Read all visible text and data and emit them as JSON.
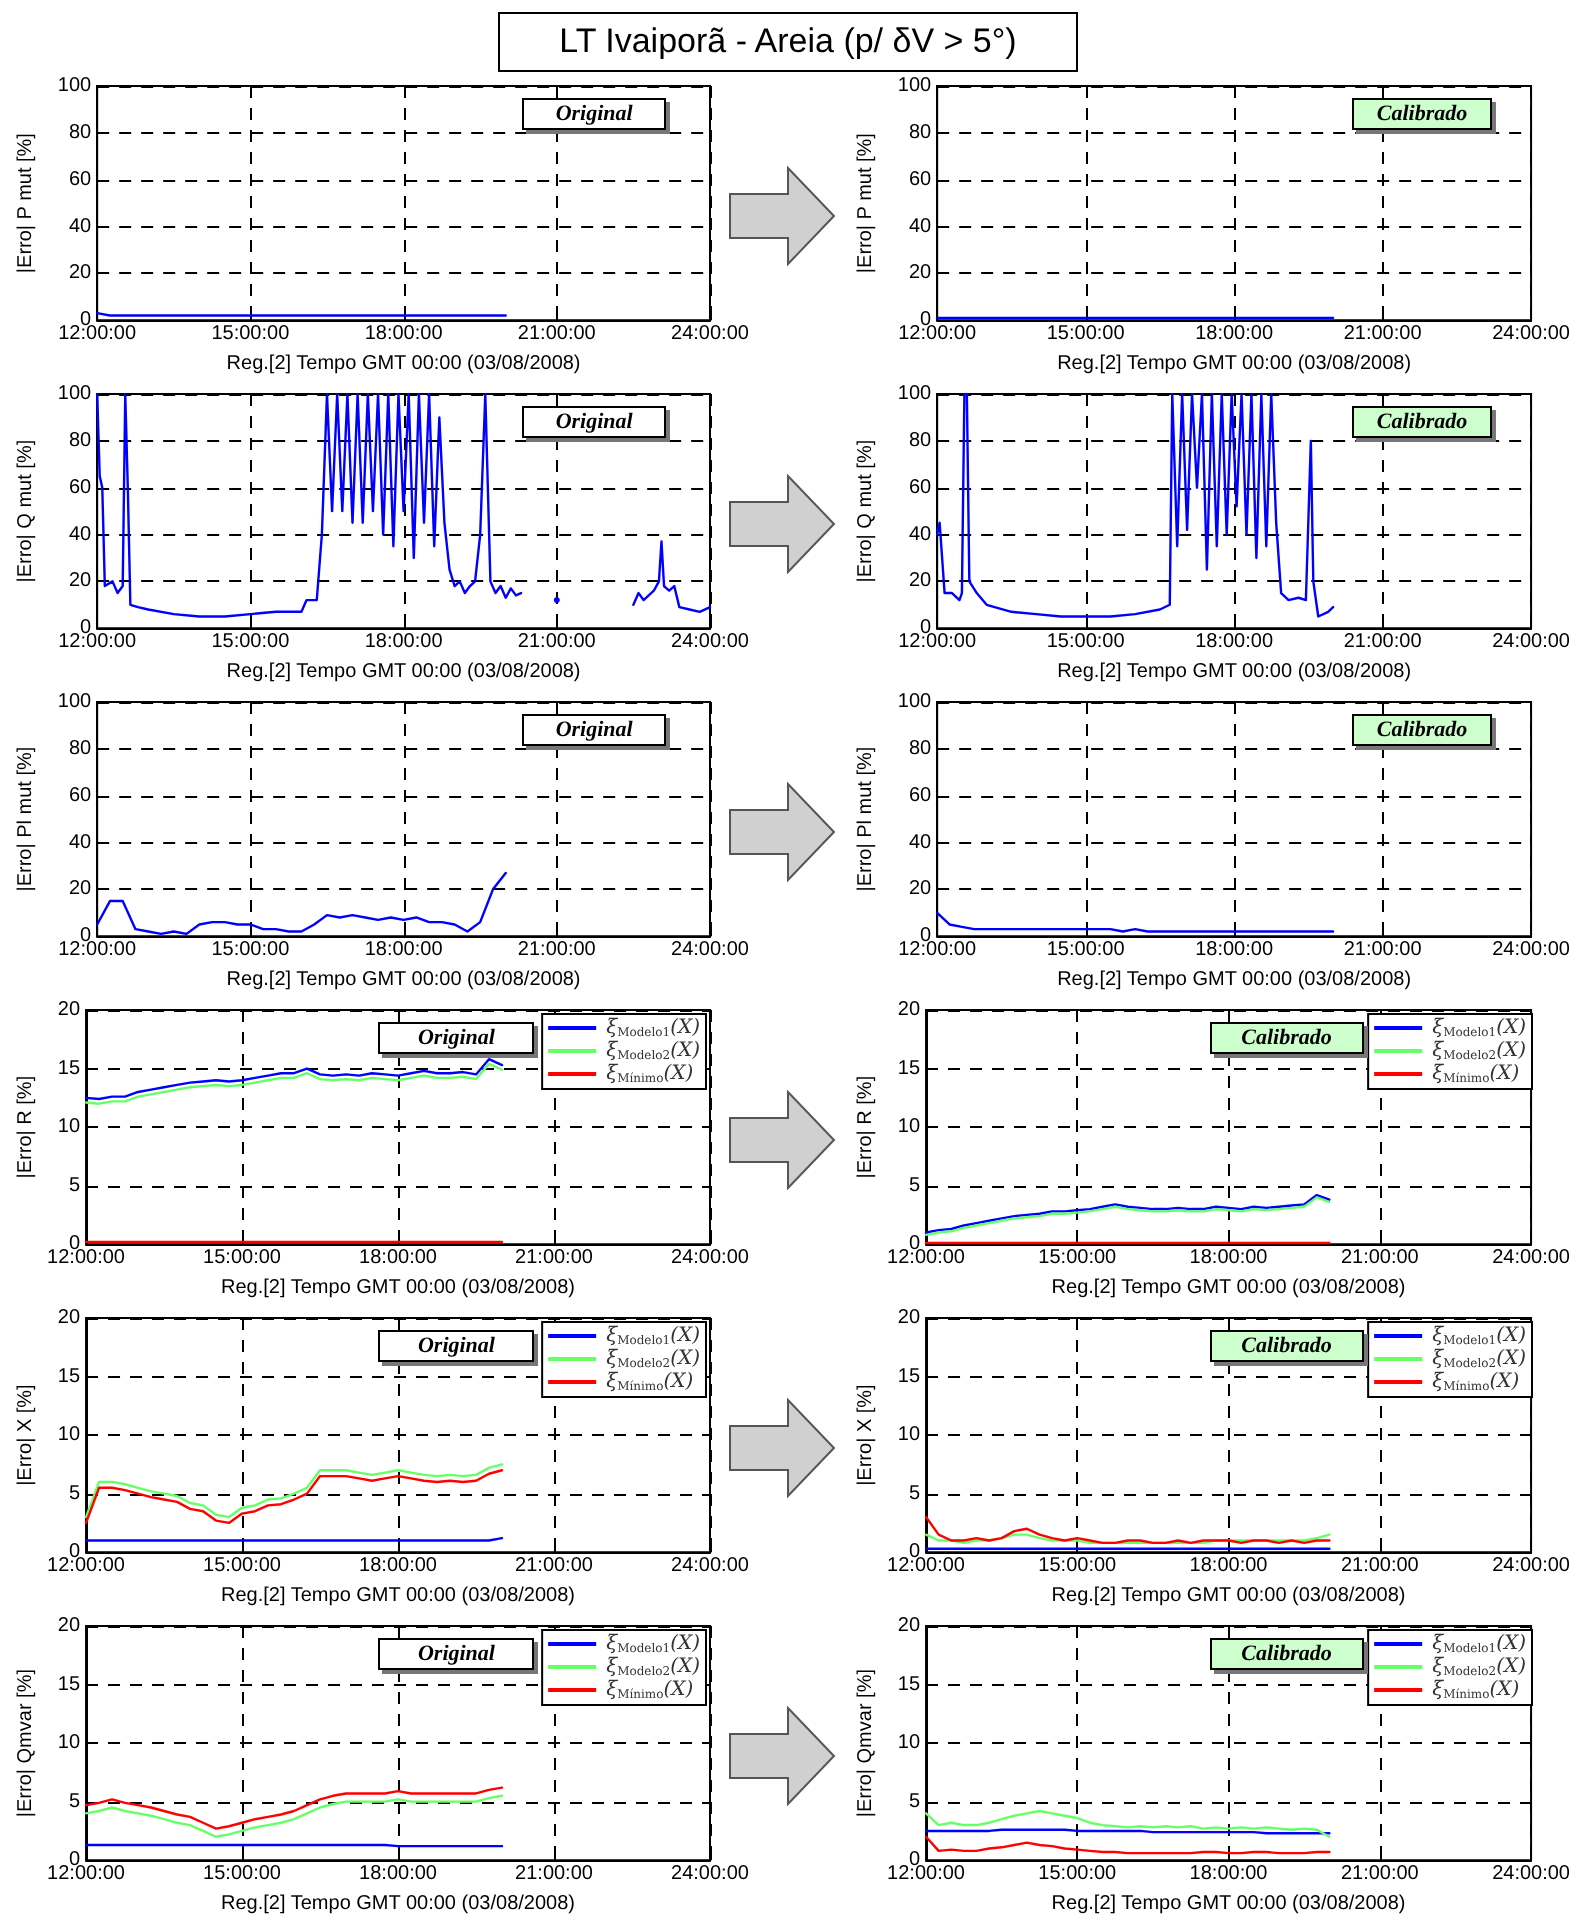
{
  "chart_data": [
    {
      "type": "line",
      "title": "LT Ivaiporã - Areia (p/ δV > 5°)",
      "xlabel": "Reg.[2] Tempo GMT 00:00 (03/08/2008)",
      "ylabel": "|Erro| P mut [%]",
      "annotations": [
        "Original"
      ],
      "grid": true,
      "x": [
        12,
        12.25,
        12.5,
        12.75,
        13,
        13.25,
        13.5,
        13.75,
        14,
        14.25,
        14.5,
        14.75,
        15,
        15.25,
        15.5,
        15.75,
        16,
        16.25,
        16.5,
        16.75,
        17,
        17.25,
        17.5,
        17.75,
        18,
        18.25,
        18.5,
        18.75,
        19,
        19.25,
        19.5,
        19.75,
        20
      ],
      "series": [
        {
          "color": "#0000ff",
          "values": [
            3,
            2,
            2,
            2,
            2,
            2,
            2,
            2,
            2,
            2,
            2,
            2,
            2,
            2,
            2,
            2,
            2,
            2,
            2,
            2,
            2,
            2,
            2,
            2,
            2,
            2,
            2,
            2,
            2,
            2,
            2,
            2,
            2
          ]
        }
      ],
      "xlim": [
        12,
        24
      ],
      "xticks": [
        {
          "value": 12,
          "label": "12:00:00"
        },
        {
          "value": 15,
          "label": "15:00:00"
        },
        {
          "value": 18,
          "label": "18:00:00"
        },
        {
          "value": 21,
          "label": "21:00:00"
        },
        {
          "value": 24,
          "label": "24:00:00"
        }
      ],
      "ylim": [
        0,
        100
      ],
      "yticks": [
        0,
        20,
        40,
        60,
        80,
        100
      ]
    },
    {
      "type": "line",
      "xlabel": "Reg.[2] Tempo GMT 00:00 (03/08/2008)",
      "ylabel": "|Erro| P mut [%]",
      "annotations": [
        "Calibrado"
      ],
      "grid": true,
      "x": [
        12,
        12.25,
        12.5,
        12.75,
        13,
        13.25,
        13.5,
        13.75,
        14,
        14.25,
        14.5,
        14.75,
        15,
        15.25,
        15.5,
        15.75,
        16,
        16.25,
        16.5,
        16.75,
        17,
        17.25,
        17.5,
        17.75,
        18,
        18.25,
        18.5,
        18.75,
        19,
        19.25,
        19.5,
        19.75,
        20
      ],
      "series": [
        {
          "color": "#0000ff",
          "values": [
            1,
            1,
            1,
            1,
            1,
            1,
            1,
            1,
            1,
            1,
            1,
            1,
            1,
            1,
            1,
            1,
            1,
            1,
            1,
            1,
            1,
            1,
            1,
            1,
            1,
            1,
            1,
            1,
            1,
            1,
            1,
            1,
            1
          ]
        }
      ],
      "xlim": [
        12,
        24
      ],
      "xticks": [
        {
          "value": 12,
          "label": "12:00:00"
        },
        {
          "value": 15,
          "label": "15:00:00"
        },
        {
          "value": 18,
          "label": "18:00:00"
        },
        {
          "value": 21,
          "label": "21:00:00"
        },
        {
          "value": 24,
          "label": "24:00:00"
        }
      ],
      "ylim": [
        0,
        100
      ],
      "yticks": [
        0,
        20,
        40,
        60,
        80,
        100
      ]
    },
    {
      "type": "line",
      "xlabel": "Reg.[2] Tempo GMT 00:00 (03/08/2008)",
      "ylabel": "|Erro| Q mut [%]",
      "annotations": [
        "Original"
      ],
      "grid": true,
      "series": [
        {
          "color": "#0000ff",
          "x": [
            12,
            12.05,
            12.1,
            12.15,
            12.3,
            12.4,
            12.5,
            12.55,
            12.6,
            12.65,
            12.8,
            13,
            13.5,
            14,
            14.5,
            15,
            15.5,
            16,
            16.1,
            16.3,
            16.4,
            16.5,
            16.6,
            16.7,
            16.8,
            16.9,
            17,
            17.1,
            17.2,
            17.3,
            17.4,
            17.5,
            17.6,
            17.7,
            17.8,
            17.9,
            18,
            18.1,
            18.2,
            18.3,
            18.4,
            18.5,
            18.6,
            18.7,
            18.8,
            18.9,
            19,
            19.1,
            19.2,
            19.3,
            19.4,
            19.5,
            19.6,
            19.7,
            19.8,
            19.9,
            20,
            20.1,
            20.2,
            20.3,
            20.6,
            21,
            21.4,
            22.5,
            22.6,
            22.7,
            22.8,
            22.9,
            23,
            23.05,
            23.1,
            23.2,
            23.3,
            23.4,
            23.6,
            23.8,
            24
          ],
          "values": [
            100,
            65,
            60,
            18,
            20,
            15,
            18,
            100,
            60,
            10,
            9,
            8,
            6,
            5,
            5,
            6,
            7,
            7,
            12,
            12,
            40,
            100,
            50,
            100,
            50,
            100,
            45,
            100,
            45,
            100,
            50,
            100,
            40,
            100,
            35,
            100,
            50,
            100,
            30,
            100,
            45,
            100,
            35,
            90,
            45,
            25,
            18,
            20,
            15,
            18,
            20,
            40,
            100,
            20,
            15,
            18,
            13,
            17,
            14,
            15,
            null,
            12,
            null,
            10,
            15,
            12,
            14,
            16,
            20,
            37,
            18,
            16,
            18,
            9,
            8,
            7,
            9
          ]
        }
      ],
      "xlim": [
        12,
        24
      ],
      "xticks": [
        {
          "value": 12,
          "label": "12:00:00"
        },
        {
          "value": 15,
          "label": "15:00:00"
        },
        {
          "value": 18,
          "label": "18:00:00"
        },
        {
          "value": 21,
          "label": "21:00:00"
        },
        {
          "value": 24,
          "label": "24:00:00"
        }
      ],
      "ylim": [
        0,
        100
      ],
      "yticks": [
        0,
        20,
        40,
        60,
        80,
        100
      ]
    },
    {
      "type": "line",
      "xlabel": "Reg.[2] Tempo GMT 00:00 (03/08/2008)",
      "ylabel": "|Erro| Q mut [%]",
      "annotations": [
        "Calibrado"
      ],
      "grid": true,
      "series": [
        {
          "color": "#0000ff",
          "x": [
            12,
            12.05,
            12.1,
            12.15,
            12.3,
            12.45,
            12.5,
            12.55,
            12.6,
            12.65,
            12.8,
            13,
            13.5,
            14,
            14.5,
            15,
            15.5,
            16,
            16.5,
            16.7,
            16.75,
            16.85,
            16.95,
            17.05,
            17.15,
            17.25,
            17.35,
            17.45,
            17.55,
            17.65,
            17.75,
            17.85,
            17.95,
            18.05,
            18.15,
            18.25,
            18.35,
            18.45,
            18.55,
            18.65,
            18.75,
            18.85,
            18.95,
            19.1,
            19.3,
            19.45,
            19.55,
            19.6,
            19.7,
            19.9,
            20
          ],
          "values": [
            40,
            45,
            30,
            15,
            15,
            12,
            15,
            100,
            100,
            20,
            15,
            10,
            7,
            6,
            5,
            5,
            5,
            6,
            8,
            10,
            100,
            35,
            100,
            42,
            100,
            60,
            100,
            25,
            100,
            35,
            100,
            40,
            100,
            52,
            100,
            40,
            100,
            30,
            100,
            35,
            100,
            45,
            15,
            12,
            13,
            12,
            80,
            20,
            5,
            7,
            9
          ]
        }
      ],
      "xlim": [
        12,
        24
      ],
      "xticks": [
        {
          "value": 12,
          "label": "12:00:00"
        },
        {
          "value": 15,
          "label": "15:00:00"
        },
        {
          "value": 18,
          "label": "18:00:00"
        },
        {
          "value": 21,
          "label": "21:00:00"
        },
        {
          "value": 24,
          "label": "24:00:00"
        }
      ],
      "ylim": [
        0,
        100
      ],
      "yticks": [
        0,
        20,
        40,
        60,
        80,
        100
      ]
    },
    {
      "type": "line",
      "xlabel": "Reg.[2] Tempo GMT 00:00 (03/08/2008)",
      "ylabel": "|Erro| Pl mut [%]",
      "annotations": [
        "Original"
      ],
      "grid": true,
      "x": [
        12,
        12.25,
        12.5,
        12.75,
        13,
        13.25,
        13.5,
        13.75,
        14,
        14.25,
        14.5,
        14.75,
        15,
        15.25,
        15.5,
        15.75,
        16,
        16.25,
        16.5,
        16.75,
        17,
        17.25,
        17.5,
        17.75,
        18,
        18.25,
        18.5,
        18.75,
        19,
        19.25,
        19.5,
        19.75,
        20
      ],
      "series": [
        {
          "color": "#0000ff",
          "values": [
            5,
            15,
            15,
            3,
            2,
            1,
            2,
            1,
            5,
            6,
            6,
            5,
            5,
            3,
            3,
            2,
            2,
            5,
            9,
            8,
            9,
            8,
            7,
            8,
            7,
            8,
            6,
            6,
            5,
            2,
            6,
            20,
            27
          ]
        }
      ],
      "xlim": [
        12,
        24
      ],
      "xticks": [
        {
          "value": 12,
          "label": "12:00:00"
        },
        {
          "value": 15,
          "label": "15:00:00"
        },
        {
          "value": 18,
          "label": "18:00:00"
        },
        {
          "value": 21,
          "label": "21:00:00"
        },
        {
          "value": 24,
          "label": "24:00:00"
        }
      ],
      "ylim": [
        0,
        100
      ],
      "yticks": [
        0,
        20,
        40,
        60,
        80,
        100
      ]
    },
    {
      "type": "line",
      "xlabel": "Reg.[2] Tempo GMT 00:00 (03/08/2008)",
      "ylabel": "|Erro| Pl mut [%]",
      "annotations": [
        "Calibrado"
      ],
      "grid": true,
      "x": [
        12,
        12.25,
        12.5,
        12.75,
        13,
        13.25,
        13.5,
        13.75,
        14,
        14.25,
        14.5,
        14.75,
        15,
        15.25,
        15.5,
        15.75,
        16,
        16.25,
        16.5,
        16.75,
        17,
        17.25,
        17.5,
        17.75,
        18,
        18.25,
        18.5,
        18.75,
        19,
        19.25,
        19.5,
        19.75,
        20
      ],
      "series": [
        {
          "color": "#0000ff",
          "values": [
            10,
            5,
            4,
            3,
            3,
            3,
            3,
            3,
            3,
            3,
            3,
            3,
            3,
            3,
            3,
            2,
            3,
            2,
            2,
            2,
            2,
            2,
            2,
            2,
            2,
            2,
            2,
            2,
            2,
            2,
            2,
            2,
            2
          ]
        }
      ],
      "xlim": [
        12,
        24
      ],
      "xticks": [
        {
          "value": 12,
          "label": "12:00:00"
        },
        {
          "value": 15,
          "label": "15:00:00"
        },
        {
          "value": 18,
          "label": "18:00:00"
        },
        {
          "value": 21,
          "label": "21:00:00"
        },
        {
          "value": 24,
          "label": "24:00:00"
        }
      ],
      "ylim": [
        0,
        100
      ],
      "yticks": [
        0,
        20,
        40,
        60,
        80,
        100
      ]
    },
    {
      "type": "line",
      "xlabel": "Reg.[2] Tempo GMT 00:00 (03/08/2008)",
      "ylabel": "|Erro| R [%]",
      "annotations": [
        "Original"
      ],
      "grid": true,
      "legend": "top right",
      "x": [
        12,
        12.25,
        12.5,
        12.75,
        13,
        13.25,
        13.5,
        13.75,
        14,
        14.25,
        14.5,
        14.75,
        15,
        15.25,
        15.5,
        15.75,
        16,
        16.25,
        16.5,
        16.75,
        17,
        17.25,
        17.5,
        17.75,
        18,
        18.25,
        18.5,
        18.75,
        19,
        19.25,
        19.5,
        19.75,
        20
      ],
      "series": [
        {
          "name": "ξ$_{Modelo1}$(X)",
          "color": "#0000ff",
          "values": [
            12.5,
            12.4,
            12.6,
            12.6,
            13,
            13.2,
            13.4,
            13.6,
            13.8,
            13.9,
            14,
            13.9,
            14,
            14.2,
            14.4,
            14.6,
            14.6,
            15,
            14.5,
            14.4,
            14.5,
            14.4,
            14.6,
            14.5,
            14.4,
            14.6,
            14.8,
            14.6,
            14.6,
            14.7,
            14.5,
            15.8,
            15.3
          ]
        },
        {
          "name": "ξ$_{Modelo2}$(X)",
          "color": "#66ff66",
          "values": [
            12.1,
            12,
            12.2,
            12.2,
            12.6,
            12.8,
            13,
            13.2,
            13.4,
            13.5,
            13.6,
            13.5,
            13.6,
            13.8,
            14,
            14.2,
            14.2,
            14.6,
            14.1,
            14,
            14.1,
            14,
            14.2,
            14.1,
            14,
            14.2,
            14.4,
            14.2,
            14.2,
            14.3,
            14.1,
            15.4,
            14.9
          ]
        },
        {
          "name": "ξ$_{Mínimo}$(X)",
          "color": "#ff0000",
          "values": [
            0.2,
            0.2,
            0.2,
            0.2,
            0.2,
            0.2,
            0.2,
            0.2,
            0.2,
            0.2,
            0.2,
            0.2,
            0.2,
            0.2,
            0.2,
            0.2,
            0.2,
            0.2,
            0.2,
            0.2,
            0.2,
            0.2,
            0.2,
            0.2,
            0.2,
            0.2,
            0.2,
            0.2,
            0.2,
            0.2,
            0.2,
            0.2,
            0.2
          ]
        }
      ],
      "xlim": [
        12,
        24
      ],
      "xticks": [
        {
          "value": 12,
          "label": "12:00:00"
        },
        {
          "value": 15,
          "label": "15:00:00"
        },
        {
          "value": 18,
          "label": "18:00:00"
        },
        {
          "value": 21,
          "label": "21:00:00"
        },
        {
          "value": 24,
          "label": "24:00:00"
        }
      ],
      "ylim": [
        0,
        20
      ],
      "yticks": [
        0,
        5,
        10,
        15,
        20
      ]
    },
    {
      "type": "line",
      "xlabel": "Reg.[2] Tempo GMT 00:00 (03/08/2008)",
      "ylabel": "|Erro| R [%]",
      "annotations": [
        "Calibrado"
      ],
      "grid": true,
      "legend": "top right",
      "x": [
        12,
        12.25,
        12.5,
        12.75,
        13,
        13.25,
        13.5,
        13.75,
        14,
        14.25,
        14.5,
        14.75,
        15,
        15.25,
        15.5,
        15.75,
        16,
        16.25,
        16.5,
        16.75,
        17,
        17.25,
        17.5,
        17.75,
        18,
        18.25,
        18.5,
        18.75,
        19,
        19.25,
        19.5,
        19.75,
        20
      ],
      "series": [
        {
          "name": "ξ$_{Modelo1}$(X)",
          "color": "#0000ff",
          "values": [
            1,
            1.2,
            1.3,
            1.6,
            1.8,
            2,
            2.2,
            2.4,
            2.5,
            2.6,
            2.8,
            2.8,
            2.9,
            3,
            3.2,
            3.4,
            3.2,
            3.1,
            3,
            3,
            3.1,
            3,
            3,
            3.2,
            3.1,
            3,
            3.2,
            3.1,
            3.2,
            3.3,
            3.4,
            4.2,
            3.8
          ]
        },
        {
          "name": "ξ$_{Modelo2}$(X)",
          "color": "#66ff66",
          "values": [
            0.8,
            1,
            1.1,
            1.4,
            1.6,
            1.8,
            2,
            2.2,
            2.3,
            2.4,
            2.6,
            2.6,
            2.7,
            2.8,
            3,
            3.2,
            3,
            2.9,
            2.8,
            2.8,
            2.9,
            2.8,
            2.8,
            3,
            2.9,
            2.8,
            3,
            2.9,
            3,
            3.1,
            3.2,
            4,
            3.6
          ]
        },
        {
          "name": "ξ$_{Mínimo}$(X)",
          "color": "#ff0000",
          "values": [
            0.1,
            0.1,
            0.1,
            0.1,
            0.1,
            0.1,
            0.1,
            0.1,
            0.1,
            0.1,
            0.1,
            0.1,
            0.1,
            0.1,
            0.1,
            0.1,
            0.1,
            0.1,
            0.1,
            0.1,
            0.1,
            0.1,
            0.1,
            0.1,
            0.1,
            0.1,
            0.1,
            0.1,
            0.1,
            0.1,
            0.1,
            0.1,
            0.1
          ]
        }
      ],
      "xlim": [
        12,
        24
      ],
      "xticks": [
        {
          "value": 12,
          "label": "12:00:00"
        },
        {
          "value": 15,
          "label": "15:00:00"
        },
        {
          "value": 18,
          "label": "18:00:00"
        },
        {
          "value": 21,
          "label": "21:00:00"
        },
        {
          "value": 24,
          "label": "24:00:00"
        }
      ],
      "ylim": [
        0,
        20
      ],
      "yticks": [
        0,
        5,
        10,
        15,
        20
      ]
    },
    {
      "type": "line",
      "xlabel": "Reg.[2] Tempo GMT 00:00 (03/08/2008)",
      "ylabel": "|Erro| X [%]",
      "annotations": [
        "Original"
      ],
      "grid": true,
      "legend": "top right",
      "x": [
        12,
        12.25,
        12.5,
        12.75,
        13,
        13.25,
        13.5,
        13.75,
        14,
        14.25,
        14.5,
        14.75,
        15,
        15.25,
        15.5,
        15.75,
        16,
        16.25,
        16.5,
        16.75,
        17,
        17.25,
        17.5,
        17.75,
        18,
        18.25,
        18.5,
        18.75,
        19,
        19.25,
        19.5,
        19.75,
        20
      ],
      "series": [
        {
          "name": "ξ$_{Modelo1}$(X)",
          "color": "#0000ff",
          "values": [
            1,
            1,
            1,
            1,
            1,
            1,
            1,
            1,
            1,
            1,
            1,
            1,
            1,
            1,
            1,
            1,
            1,
            1,
            1,
            1,
            1,
            1,
            1,
            1,
            1,
            1,
            1,
            1,
            1,
            1,
            1,
            1,
            1.2
          ]
        },
        {
          "name": "ξ$_{Modelo2}$(X)",
          "color": "#66ff66",
          "values": [
            3,
            6,
            6,
            5.8,
            5.5,
            5.2,
            5,
            4.8,
            4.2,
            4,
            3.2,
            3,
            3.8,
            4,
            4.5,
            4.6,
            5,
            5.5,
            7,
            7,
            7,
            6.8,
            6.6,
            6.8,
            7,
            6.8,
            6.6,
            6.5,
            6.6,
            6.5,
            6.6,
            7.2,
            7.5
          ]
        },
        {
          "name": "ξ$_{Mínimo}$(X)",
          "color": "#ff0000",
          "values": [
            2.5,
            5.5,
            5.5,
            5.3,
            5,
            4.7,
            4.5,
            4.3,
            3.7,
            3.5,
            2.7,
            2.5,
            3.3,
            3.5,
            4,
            4.1,
            4.5,
            5,
            6.5,
            6.5,
            6.5,
            6.3,
            6.1,
            6.3,
            6.5,
            6.3,
            6.1,
            6,
            6.1,
            6,
            6.1,
            6.7,
            7
          ]
        }
      ],
      "xlim": [
        12,
        24
      ],
      "xticks": [
        {
          "value": 12,
          "label": "12:00:00"
        },
        {
          "value": 15,
          "label": "15:00:00"
        },
        {
          "value": 18,
          "label": "18:00:00"
        },
        {
          "value": 21,
          "label": "21:00:00"
        },
        {
          "value": 24,
          "label": "24:00:00"
        }
      ],
      "ylim": [
        0,
        20
      ],
      "yticks": [
        0,
        5,
        10,
        15,
        20
      ]
    },
    {
      "type": "line",
      "xlabel": "Reg.[2] Tempo GMT 00:00 (03/08/2008)",
      "ylabel": "|Erro| X [%]",
      "annotations": [
        "Calibrado"
      ],
      "grid": true,
      "legend": "top right",
      "x": [
        12,
        12.25,
        12.5,
        12.75,
        13,
        13.25,
        13.5,
        13.75,
        14,
        14.25,
        14.5,
        14.75,
        15,
        15.25,
        15.5,
        15.75,
        16,
        16.25,
        16.5,
        16.75,
        17,
        17.25,
        17.5,
        17.75,
        18,
        18.25,
        18.5,
        18.75,
        19,
        19.25,
        19.5,
        19.75,
        20
      ],
      "series": [
        {
          "name": "ξ$_{Modelo1}$(X)",
          "color": "#0000ff",
          "values": [
            0.3,
            0.3,
            0.3,
            0.3,
            0.3,
            0.3,
            0.3,
            0.3,
            0.3,
            0.3,
            0.3,
            0.3,
            0.3,
            0.3,
            0.3,
            0.3,
            0.3,
            0.3,
            0.3,
            0.3,
            0.3,
            0.3,
            0.3,
            0.3,
            0.3,
            0.3,
            0.3,
            0.3,
            0.3,
            0.3,
            0.3,
            0.3,
            0.3
          ]
        },
        {
          "name": "ξ$_{Modelo2}$(X)",
          "color": "#66ff66",
          "values": [
            1.5,
            1,
            1,
            0.8,
            1,
            1,
            1.2,
            1.5,
            1.5,
            1.2,
            1,
            1,
            1,
            0.8,
            0.8,
            0.8,
            0.8,
            0.8,
            0.8,
            0.8,
            0.8,
            0.8,
            0.8,
            1,
            1,
            1,
            1,
            1,
            1,
            1,
            1,
            1.2,
            1.5
          ]
        },
        {
          "name": "ξ$_{Mínimo}$(X)",
          "color": "#ff0000",
          "values": [
            3,
            1.5,
            1,
            1,
            1.2,
            1,
            1.2,
            1.8,
            2,
            1.5,
            1.2,
            1,
            1.2,
            1,
            0.8,
            0.8,
            1,
            1,
            0.8,
            0.8,
            1,
            0.8,
            1,
            1,
            1,
            0.8,
            1,
            1,
            0.8,
            1,
            0.8,
            1,
            1
          ]
        }
      ],
      "xlim": [
        12,
        24
      ],
      "xticks": [
        {
          "value": 12,
          "label": "12:00:00"
        },
        {
          "value": 15,
          "label": "15:00:00"
        },
        {
          "value": 18,
          "label": "18:00:00"
        },
        {
          "value": 21,
          "label": "21:00:00"
        },
        {
          "value": 24,
          "label": "24:00:00"
        }
      ],
      "ylim": [
        0,
        20
      ],
      "yticks": [
        0,
        5,
        10,
        15,
        20
      ]
    },
    {
      "type": "line",
      "xlabel": "Reg.[2] Tempo GMT 00:00 (03/08/2008)",
      "ylabel": "|Erro| Qmvar [%]",
      "annotations": [
        "Original"
      ],
      "grid": true,
      "legend": "top right",
      "x": [
        12,
        12.25,
        12.5,
        12.75,
        13,
        13.25,
        13.5,
        13.75,
        14,
        14.25,
        14.5,
        14.75,
        15,
        15.25,
        15.5,
        15.75,
        16,
        16.25,
        16.5,
        16.75,
        17,
        17.25,
        17.5,
        17.75,
        18,
        18.25,
        18.5,
        18.75,
        19,
        19.25,
        19.5,
        19.75,
        20
      ],
      "series": [
        {
          "name": "ξ$_{Modelo1}$(X)",
          "color": "#0000ff",
          "values": [
            1.3,
            1.3,
            1.3,
            1.3,
            1.3,
            1.3,
            1.3,
            1.3,
            1.3,
            1.3,
            1.3,
            1.3,
            1.3,
            1.3,
            1.3,
            1.3,
            1.3,
            1.3,
            1.3,
            1.3,
            1.3,
            1.3,
            1.3,
            1.3,
            1.2,
            1.2,
            1.2,
            1.2,
            1.2,
            1.2,
            1.2,
            1.2,
            1.2
          ]
        },
        {
          "name": "ξ$_{Modelo2}$(X)",
          "color": "#66ff66",
          "values": [
            4,
            4.2,
            4.5,
            4.2,
            4,
            3.8,
            3.5,
            3.2,
            3,
            2.5,
            2,
            2.2,
            2.5,
            2.8,
            3,
            3.2,
            3.5,
            4,
            4.5,
            4.8,
            5,
            5,
            5,
            5,
            5.2,
            5,
            5,
            5,
            5,
            5,
            5,
            5.3,
            5.5
          ]
        },
        {
          "name": "ξ$_{Mínimo}$(X)",
          "color": "#ff0000",
          "values": [
            4.7,
            4.9,
            5.2,
            4.9,
            4.7,
            4.5,
            4.2,
            3.9,
            3.7,
            3.2,
            2.7,
            2.9,
            3.2,
            3.5,
            3.7,
            3.9,
            4.2,
            4.7,
            5.2,
            5.5,
            5.7,
            5.7,
            5.7,
            5.7,
            5.9,
            5.7,
            5.7,
            5.7,
            5.7,
            5.7,
            5.7,
            6,
            6.2
          ]
        }
      ],
      "xlim": [
        12,
        24
      ],
      "xticks": [
        {
          "value": 12,
          "label": "12:00:00"
        },
        {
          "value": 15,
          "label": "15:00:00"
        },
        {
          "value": 18,
          "label": "18:00:00"
        },
        {
          "value": 21,
          "label": "21:00:00"
        },
        {
          "value": 24,
          "label": "24:00:00"
        }
      ],
      "ylim": [
        0,
        20
      ],
      "yticks": [
        0,
        5,
        10,
        15,
        20
      ]
    },
    {
      "type": "line",
      "xlabel": "Reg.[2] Tempo GMT 00:00 (03/08/2008)",
      "ylabel": "|Erro| Qmvar [%]",
      "annotations": [
        "Calibrado"
      ],
      "grid": true,
      "legend": "top right",
      "x": [
        12,
        12.25,
        12.5,
        12.75,
        13,
        13.25,
        13.5,
        13.75,
        14,
        14.25,
        14.5,
        14.75,
        15,
        15.25,
        15.5,
        15.75,
        16,
        16.25,
        16.5,
        16.75,
        17,
        17.25,
        17.5,
        17.75,
        18,
        18.25,
        18.5,
        18.75,
        19,
        19.25,
        19.5,
        19.75,
        20
      ],
      "series": [
        {
          "name": "ξ$_{Modelo1}$(X)",
          "color": "#0000ff",
          "values": [
            2.5,
            2.5,
            2.5,
            2.5,
            2.5,
            2.5,
            2.6,
            2.6,
            2.6,
            2.6,
            2.6,
            2.6,
            2.5,
            2.5,
            2.5,
            2.5,
            2.5,
            2.5,
            2.4,
            2.4,
            2.4,
            2.4,
            2.4,
            2.4,
            2.4,
            2.4,
            2.4,
            2.3,
            2.3,
            2.3,
            2.3,
            2.3,
            2.3
          ]
        },
        {
          "name": "ξ$_{Modelo2}$(X)",
          "color": "#66ff66",
          "values": [
            4,
            3,
            3.2,
            3,
            3,
            3.2,
            3.5,
            3.8,
            4,
            4.2,
            4,
            3.8,
            3.6,
            3.2,
            3,
            2.9,
            2.8,
            2.9,
            2.8,
            2.9,
            2.8,
            2.9,
            2.7,
            2.8,
            2.7,
            2.8,
            2.7,
            2.8,
            2.7,
            2.6,
            2.7,
            2.6,
            2
          ]
        },
        {
          "name": "ξ$_{Mínimo}$(X)",
          "color": "#ff0000",
          "values": [
            2,
            0.8,
            0.9,
            0.8,
            0.8,
            1,
            1.1,
            1.3,
            1.5,
            1.3,
            1.2,
            1,
            0.9,
            0.8,
            0.7,
            0.7,
            0.6,
            0.6,
            0.6,
            0.6,
            0.6,
            0.6,
            0.7,
            0.7,
            0.6,
            0.6,
            0.7,
            0.7,
            0.6,
            0.6,
            0.6,
            0.7,
            0.7
          ]
        }
      ],
      "xlim": [
        12,
        24
      ],
      "xticks": [
        {
          "value": 12,
          "label": "12:00:00"
        },
        {
          "value": 15,
          "label": "15:00:00"
        },
        {
          "value": 18,
          "label": "18:00:00"
        },
        {
          "value": 21,
          "label": "21:00:00"
        },
        {
          "value": 24,
          "label": "24:00:00"
        }
      ],
      "ylim": [
        0,
        20
      ],
      "yticks": [
        0,
        5,
        10,
        15,
        20
      ]
    }
  ]
}
